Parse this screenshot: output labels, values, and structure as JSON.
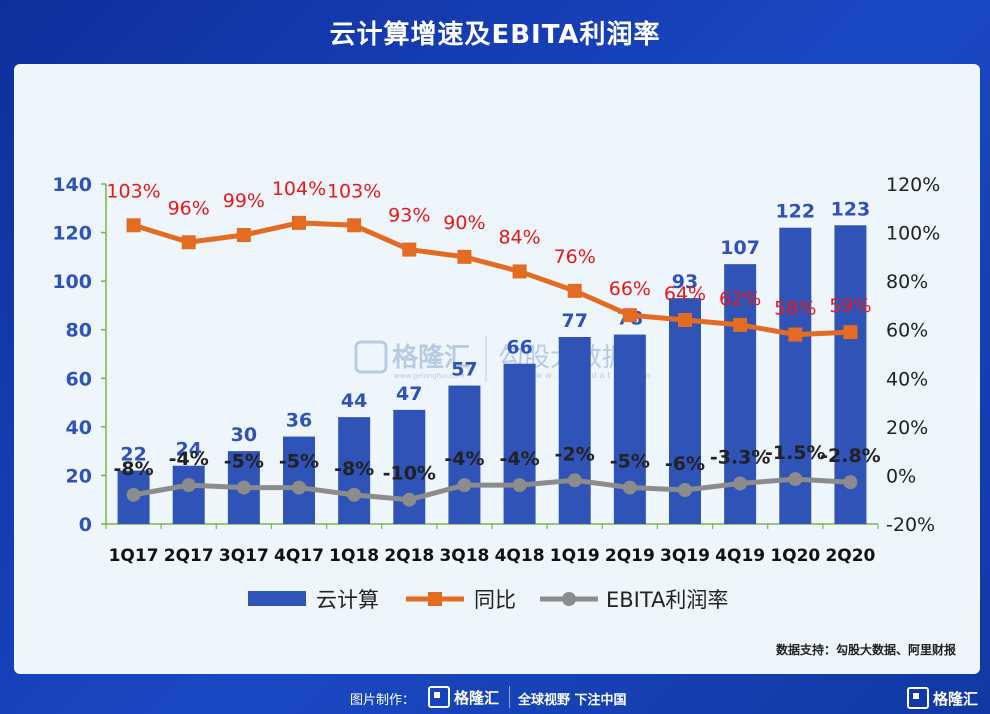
{
  "title": "云计算增速及EBITA利润率",
  "chart_data": {
    "type": "bar",
    "categories": [
      "1Q17",
      "2Q17",
      "3Q17",
      "4Q17",
      "1Q18",
      "2Q18",
      "3Q18",
      "4Q18",
      "1Q19",
      "2Q19",
      "3Q19",
      "4Q19",
      "1Q20",
      "2Q20"
    ],
    "x_tick_text": [
      "1Q17",
      "2Q17",
      "3Q17",
      "4Q17",
      "1Q18",
      "2Q18",
      "3Q18",
      "4Q18",
      "1Q19",
      "2Q19",
      "3Q19",
      "4Q19",
      "1Q20",
      "2Q20"
    ],
    "series": [
      {
        "name": "云计算",
        "type": "bar",
        "axis": "left",
        "values": [
          22,
          24,
          30,
          36,
          44,
          47,
          57,
          66,
          77,
          78,
          93,
          107,
          122,
          123
        ],
        "labels": [
          "22",
          "24",
          "30",
          "36",
          "44",
          "47",
          "57",
          "66",
          "77",
          "78",
          "93",
          "107",
          "122",
          "123"
        ],
        "color": "#2f53b6"
      },
      {
        "name": "同比",
        "type": "line",
        "axis": "right",
        "values": [
          103,
          96,
          99,
          104,
          103,
          93,
          90,
          84,
          76,
          66,
          64,
          62,
          58,
          59
        ],
        "labels": [
          "103%",
          "96%",
          "99%",
          "104%",
          "103%",
          "93%",
          "90%",
          "84%",
          "76%",
          "66%",
          "64%",
          "62%",
          "58%",
          "59%"
        ],
        "color": "#e46c22",
        "label_color": "#e81a1a"
      },
      {
        "name": "EBITA利润率",
        "type": "line",
        "axis": "right",
        "values": [
          -8,
          -4,
          -5,
          -5,
          -8,
          -10,
          -4,
          -4,
          -2,
          -5,
          -6,
          -3.3,
          -1.5,
          -2.8
        ],
        "labels": [
          "-8%",
          "-4%",
          "-5%",
          "-5%",
          "-8%",
          "-10%",
          "-4%",
          "-4%",
          "-2%",
          "-5%",
          "-6%",
          "-3.3%",
          "-1.5%",
          "-2.8%"
        ],
        "color": "#8c8c8c",
        "label_color": "#222222"
      }
    ],
    "left_axis": {
      "min": 0,
      "max": 140,
      "ticks": [
        "0",
        "20",
        "40",
        "60",
        "80",
        "100",
        "120",
        "140"
      ]
    },
    "right_axis": {
      "min": -20,
      "max": 120,
      "ticks": [
        "-20%",
        "0%",
        "20%",
        "40%",
        "60%",
        "80%",
        "100%",
        "120%"
      ]
    },
    "legend": [
      "云计算",
      "同比",
      "EBITA利润率"
    ],
    "legend_position": "bottom"
  },
  "watermark": {
    "brand": "格隆汇",
    "brand_url": "www.gelonghui.com",
    "partner": "勾股大数据",
    "partner_url": "www.gogudata.com"
  },
  "source": "数据支持：勾股大数据、阿里财报",
  "footer": {
    "made_by": "图片制作：",
    "logo_text": "格隆汇",
    "slogan": "全球视野 下注中国",
    "corner_logo": "格隆汇"
  }
}
